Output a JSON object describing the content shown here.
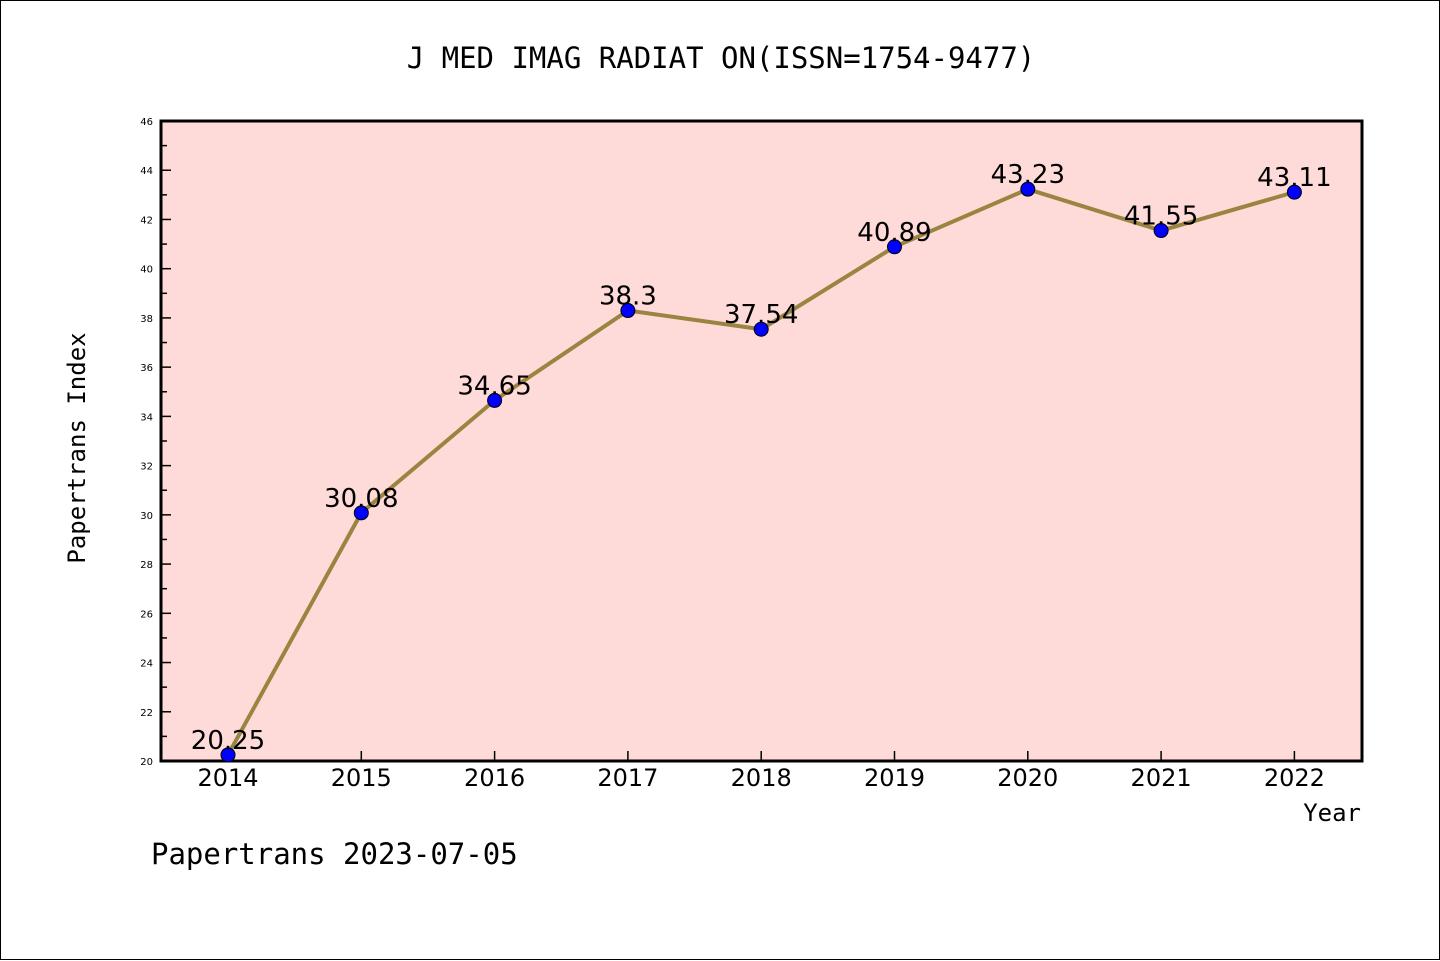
{
  "chart_data": {
    "type": "line",
    "title": "J MED IMAG RADIAT ON(ISSN=1754-9477)",
    "xlabel": "Year",
    "ylabel": "Papertrans Index",
    "categories": [
      "2014",
      "2015",
      "2016",
      "2017",
      "2018",
      "2019",
      "2020",
      "2021",
      "2022"
    ],
    "series": [
      {
        "values": [
          20.25,
          30.08,
          34.65,
          38.3,
          37.54,
          40.89,
          43.23,
          41.55,
          43.11
        ],
        "labels": [
          "20.25",
          "30.08",
          "34.65",
          "38.3",
          "37.54",
          "40.89",
          "43.23",
          "41.55",
          "43.11"
        ]
      }
    ],
    "ylim": [
      20,
      46
    ],
    "yticks": [
      "20",
      "22",
      "24",
      "26",
      "28",
      "30",
      "32",
      "34",
      "36",
      "38",
      "40",
      "42",
      "44",
      "46"
    ],
    "footer": "Papertrans 2023-07-05",
    "colors": {
      "plot_background": "#fedad8",
      "line": "#9a8540",
      "marker": "#0000ff",
      "axis": "#000000"
    }
  }
}
